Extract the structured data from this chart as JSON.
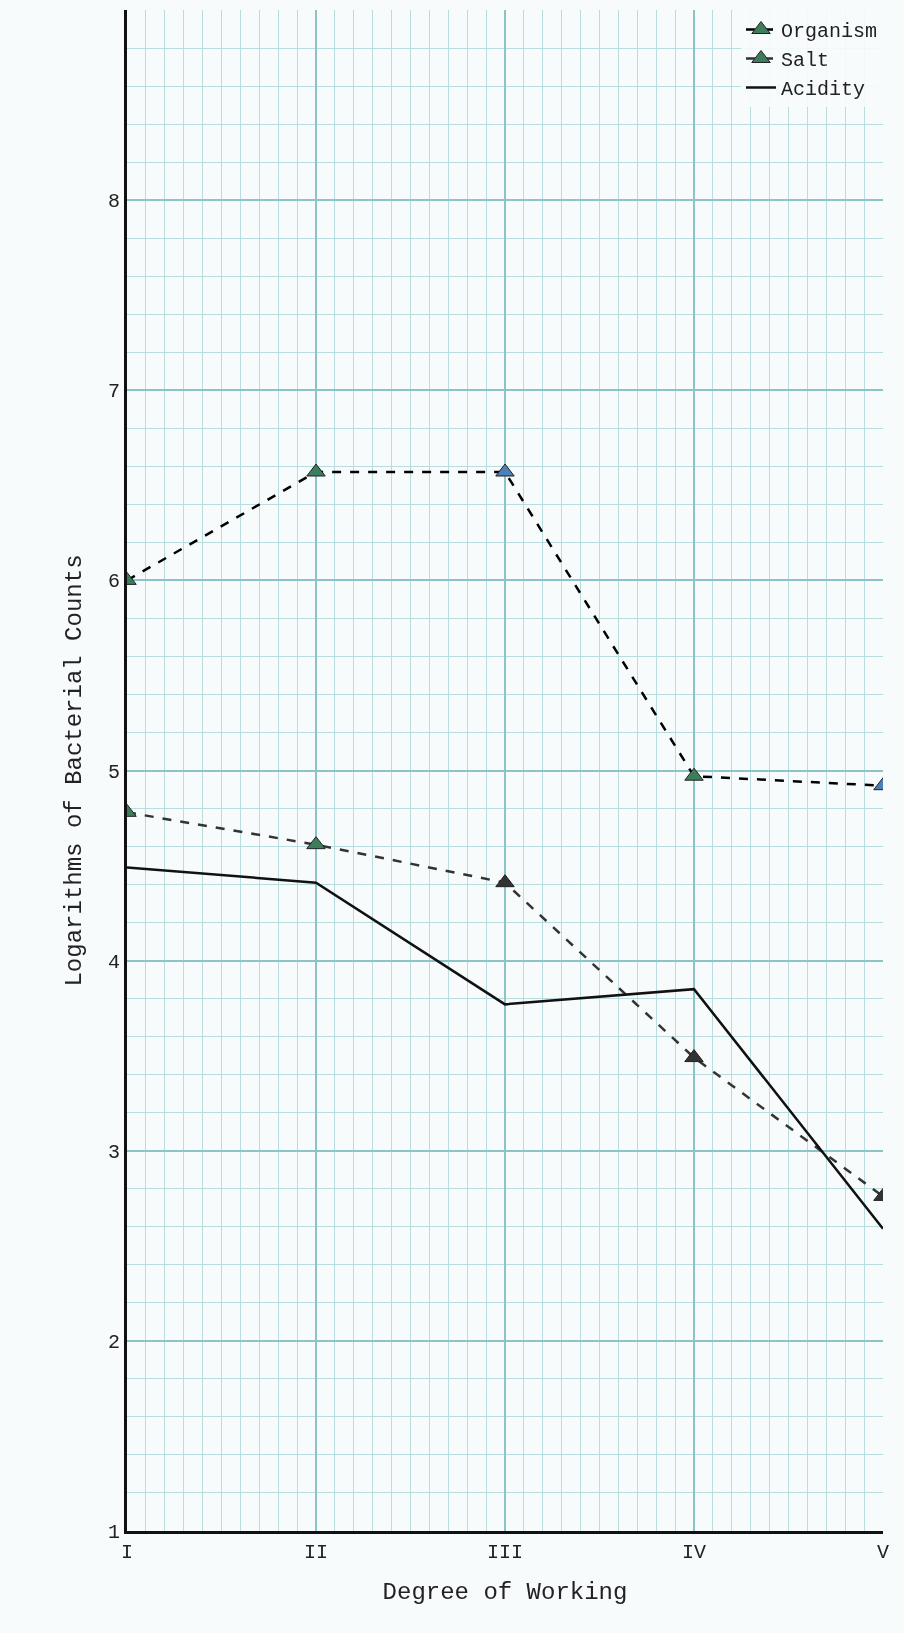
{
  "chart_data": {
    "type": "line",
    "xlabel": "Degree of Working",
    "ylabel": "Logarithms of Bacterial Counts",
    "categories": [
      "I",
      "II",
      "III",
      "IV",
      "V"
    ],
    "series": [
      {
        "name": "Organism",
        "color": "#000000",
        "values": [
          6.0,
          6.57,
          6.57,
          4.97,
          4.92
        ],
        "line_style": "dashed",
        "marker": "triangle",
        "colors": [
          "#3d7d5c",
          "#3d7d5c",
          "#4f7fb8",
          "#3d7d5c",
          "#4f7fb8"
        ]
      },
      {
        "name": "Salt",
        "color": "#333333",
        "values": [
          4.78,
          4.61,
          4.41,
          3.49,
          2.76
        ],
        "line_style": "dashed",
        "marker": "triangle",
        "colors": [
          "#3d7d5c",
          "#3d7d5c",
          "#333333",
          "#333333",
          "#333333"
        ]
      },
      {
        "name": "Acidity",
        "color": "#111111",
        "values": [
          4.49,
          4.41,
          3.77,
          3.85,
          2.59
        ],
        "line_style": "solid",
        "marker": "none"
      }
    ],
    "ylim": [
      1,
      9
    ],
    "yticks": [
      1,
      2,
      3,
      4,
      5,
      6,
      7,
      8
    ],
    "grid": true,
    "legend": "top right"
  }
}
